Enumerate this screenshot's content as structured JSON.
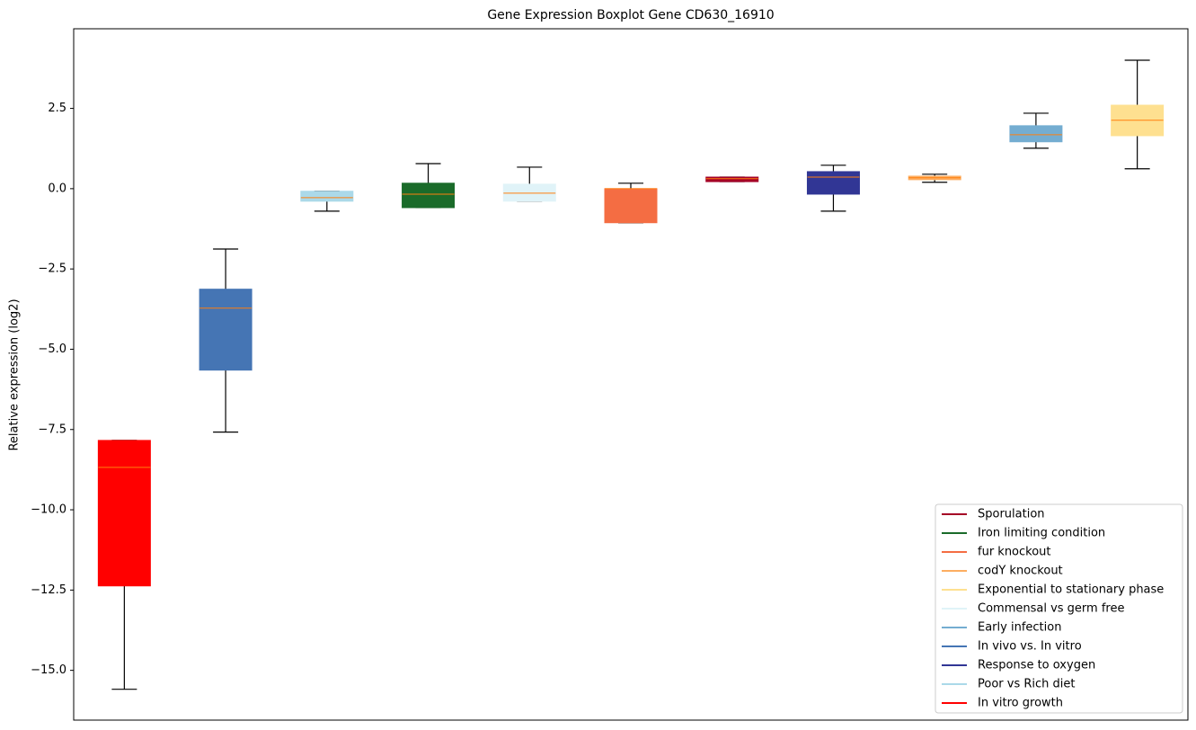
{
  "chart_data": {
    "type": "boxplot",
    "title": "Gene Expression Boxplot Gene CD630_16910",
    "ylabel": "Relative expression (log2)",
    "ylim": [
      -16.55,
      4.98
    ],
    "yticks": [
      {
        "value": -15,
        "label": "−15.0"
      },
      {
        "value": -12.5,
        "label": "−12.5"
      },
      {
        "value": -10,
        "label": "−10.0"
      },
      {
        "value": -7.5,
        "label": "−7.5"
      },
      {
        "value": -5,
        "label": "−5.0"
      },
      {
        "value": -2.5,
        "label": "−2.5"
      },
      {
        "value": 0,
        "label": "0.0"
      },
      2.5
    ],
    "legend": "lower right",
    "median_color": "#ff7f0e",
    "series": [
      {
        "name": "Sporulation",
        "color": "#a50026",
        "x": 7,
        "whislo": 0.22,
        "q1": 0.22,
        "med": 0.31,
        "q3": 0.36,
        "whishi": 0.36
      },
      {
        "name": "Iron limiting condition",
        "color": "#1a6b2a",
        "x": 4,
        "whislo": -0.59,
        "q1": -0.59,
        "med": -0.17,
        "q3": 0.17,
        "whishi": 0.78
      },
      {
        "name": "fur knockout",
        "color": "#f46d43",
        "x": 6,
        "whislo": -1.06,
        "q1": -1.06,
        "med": 0.0,
        "q3": 0.0,
        "whishi": 0.17
      },
      {
        "name": "codY knockout",
        "color": "#fdae61",
        "x": 9,
        "whislo": 0.2,
        "q1": 0.28,
        "med": 0.34,
        "q3": 0.39,
        "whishi": 0.45
      },
      {
        "name": "Exponential to stationary phase",
        "color": "#fee090",
        "x": 11,
        "whislo": 0.62,
        "q1": 1.65,
        "med": 2.13,
        "q3": 2.6,
        "whishi": 4.0
      },
      {
        "name": "Commensal vs germ free",
        "color": "#e0f3f8",
        "x": 5,
        "whislo": -0.39,
        "q1": -0.39,
        "med": -0.14,
        "q3": 0.14,
        "whishi": 0.67
      },
      {
        "name": "Early infection",
        "color": "#74add1",
        "x": 10,
        "whislo": 1.26,
        "q1": 1.46,
        "med": 1.68,
        "q3": 1.96,
        "whishi": 2.35
      },
      {
        "name": "In vivo vs. In vitro",
        "color": "#4575b4",
        "x": 2,
        "whislo": -7.58,
        "q1": -5.65,
        "med": -3.72,
        "q3": -3.13,
        "whishi": -1.88
      },
      {
        "name": "Response to oxygen",
        "color": "#313695",
        "x": 8,
        "whislo": -0.7,
        "q1": -0.17,
        "med": 0.36,
        "q3": 0.53,
        "whishi": 0.73
      },
      {
        "name": "Poor vs Rich diet",
        "color": "#abd9e9",
        "x": 3,
        "whislo": -0.7,
        "q1": -0.39,
        "med": -0.28,
        "q3": -0.08,
        "whishi": -0.08
      },
      {
        "name": "In vitro growth",
        "color": "#ff0000",
        "x": 1,
        "whislo": -15.59,
        "q1": -12.37,
        "med": -8.68,
        "q3": -7.84,
        "whishi": -7.84
      }
    ]
  }
}
